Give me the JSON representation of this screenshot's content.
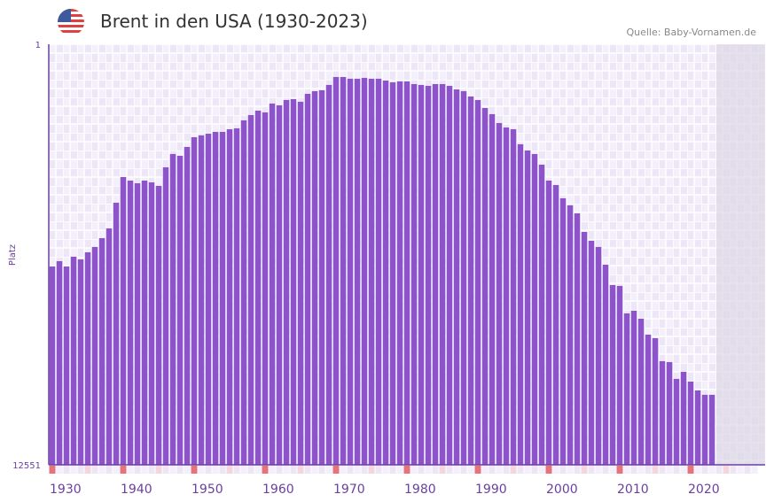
{
  "header": {
    "title": "Brent in den USA (1930-2023)",
    "source": "Quelle: Baby-Vornamen.de",
    "flag_icon": "us-flag-icon"
  },
  "colors": {
    "bar": "#8c54c8",
    "decade_marker": "#e8727a",
    "half_decade_marker": "#f6d6de",
    "future_shade": "#e3dfeb",
    "grid_bg": "#eee9f8"
  },
  "chart_data": {
    "type": "bar",
    "title": "Brent in den USA (1930-2023)",
    "xlabel": "",
    "ylabel": "Platz",
    "ylim": [
      12551,
      1
    ],
    "y_ticks": [
      "1",
      "12551"
    ],
    "x_range": [
      1930,
      2030
    ],
    "x_ticks": [
      "1930",
      "1940",
      "1950",
      "1960",
      "1970",
      "1980",
      "1990",
      "2000",
      "2010",
      "2020"
    ],
    "categories": [
      1930,
      1931,
      1932,
      1933,
      1934,
      1935,
      1936,
      1937,
      1938,
      1939,
      1940,
      1941,
      1942,
      1943,
      1944,
      1945,
      1946,
      1947,
      1948,
      1949,
      1950,
      1951,
      1952,
      1953,
      1954,
      1955,
      1956,
      1957,
      1958,
      1959,
      1960,
      1961,
      1962,
      1963,
      1964,
      1965,
      1966,
      1967,
      1968,
      1969,
      1970,
      1971,
      1972,
      1973,
      1974,
      1975,
      1976,
      1977,
      1978,
      1979,
      1980,
      1981,
      1982,
      1983,
      1984,
      1985,
      1986,
      1987,
      1988,
      1989,
      1990,
      1991,
      1992,
      1993,
      1994,
      1995,
      1996,
      1997,
      1998,
      1999,
      2000,
      2001,
      2002,
      2003,
      2004,
      2005,
      2006,
      2007,
      2008,
      2009,
      2010,
      2011,
      2012,
      2013,
      2014,
      2015,
      2016,
      2017,
      2018,
      2019,
      2020,
      2021,
      2022,
      2023
    ],
    "values": [
      6632,
      6473,
      6632,
      6341,
      6420,
      6209,
      6050,
      5786,
      5496,
      4729,
      3963,
      4069,
      4148,
      4069,
      4122,
      4227,
      3673,
      3276,
      3329,
      3065,
      2774,
      2721,
      2668,
      2616,
      2616,
      2536,
      2510,
      2272,
      2114,
      1982,
      2034,
      1770,
      1823,
      1665,
      1638,
      1717,
      1480,
      1400,
      1374,
      1215,
      978,
      978,
      1030,
      1030,
      1004,
      1030,
      1030,
      1083,
      1136,
      1110,
      1110,
      1189,
      1215,
      1242,
      1189,
      1189,
      1242,
      1347,
      1400,
      1559,
      1665,
      1902,
      2087,
      2352,
      2484,
      2536,
      2985,
      3170,
      3276,
      3593,
      4069,
      4201,
      4597,
      4808,
      5046,
      5601,
      5865,
      6050,
      6579,
      7186,
      7213,
      8032,
      7952,
      8190,
      8666,
      8771,
      9458,
      9485,
      9987,
      9775,
      10066,
      10330,
      10462,
      10462
    ]
  }
}
